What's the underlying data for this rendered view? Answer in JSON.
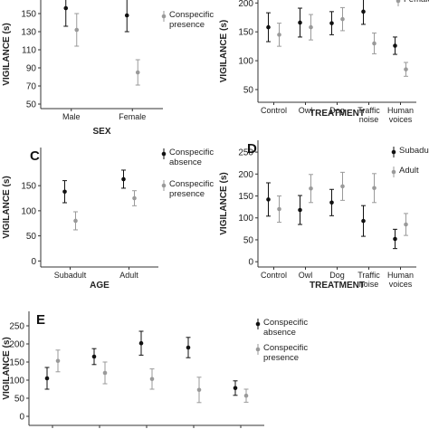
{
  "chart_data": [
    {
      "type": "errorbar",
      "xlabel": "SEX",
      "ylabel": "VIGILANCE (s)",
      "categories": [
        "Male",
        "Female"
      ],
      "series": [
        {
          "color": "#111111",
          "values": [
            156,
            148
          ],
          "errors": [
            20,
            18
          ]
        },
        {
          "name": "Conspecific presence",
          "color": "#9a9a9a",
          "values": [
            132,
            85
          ],
          "errors": [
            18,
            14
          ]
        }
      ],
      "ylim": [
        45,
        170
      ],
      "yticks": [
        50,
        70,
        90,
        110,
        130,
        150
      ]
    },
    {
      "type": "errorbar",
      "xlabel": "TREATMENT",
      "ylabel": "VIGILANCE (s)",
      "categories": [
        "Control",
        "Owl",
        "Dog",
        "Traffic noise",
        "Human voices"
      ],
      "series": [
        {
          "color": "#111111",
          "values": [
            158,
            166,
            165,
            185,
            126
          ],
          "errors": [
            25,
            25,
            20,
            22,
            15
          ]
        },
        {
          "name": "Females",
          "color": "#9a9a9a",
          "values": [
            145,
            158,
            172,
            130,
            85
          ],
          "errors": [
            20,
            22,
            20,
            18,
            12
          ]
        }
      ],
      "ylim": [
        28,
        213
      ],
      "yticks": [
        50,
        100,
        150,
        200
      ]
    },
    {
      "type": "errorbar",
      "title": "C",
      "xlabel": "AGE",
      "ylabel": "VIGILANCE (s)",
      "categories": [
        "Subadult",
        "Adult"
      ],
      "series": [
        {
          "name": "Conspecific absence",
          "color": "#111111",
          "values": [
            138,
            163
          ],
          "errors": [
            22,
            18
          ]
        },
        {
          "name": "Conspecific presence",
          "color": "#9a9a9a",
          "values": [
            80,
            125
          ],
          "errors": [
            18,
            15
          ]
        }
      ],
      "ylim": [
        -12,
        226
      ],
      "yticks": [
        0,
        50,
        100,
        150
      ]
    },
    {
      "type": "errorbar",
      "title": "D",
      "xlabel": "TREATMENT",
      "ylabel": "VIGILANCE (s)",
      "categories": [
        "Control",
        "Owl",
        "Dog",
        "Traffic noise",
        "Human voices"
      ],
      "series": [
        {
          "name": "Subadult",
          "color": "#111111",
          "values": [
            142,
            118,
            135,
            93,
            52
          ],
          "errors": [
            38,
            33,
            30,
            35,
            22
          ]
        },
        {
          "name": "Adult",
          "color": "#9a9a9a",
          "values": [
            120,
            167,
            172,
            168,
            85
          ],
          "errors": [
            30,
            32,
            32,
            33,
            25
          ]
        }
      ],
      "ylim": [
        -12,
        277
      ],
      "yticks": [
        0,
        50,
        100,
        150,
        200,
        250
      ]
    },
    {
      "type": "errorbar",
      "title": "E",
      "ylabel": "VIGILANCE (s)",
      "categories": [
        null,
        null,
        null,
        null,
        null
      ],
      "series": [
        {
          "name": "Conspecific absence",
          "color": "#111111",
          "values": [
            105,
            165,
            202,
            190,
            78
          ],
          "errors": [
            30,
            22,
            33,
            28,
            20
          ]
        },
        {
          "name": "Conspecific presence",
          "color": "#9a9a9a",
          "values": [
            153,
            120,
            103,
            73,
            57
          ],
          "errors": [
            30,
            30,
            28,
            35,
            18
          ]
        }
      ],
      "ylim": [
        -25,
        290
      ],
      "yticks": [
        0,
        50,
        100,
        150,
        200,
        250
      ]
    }
  ]
}
